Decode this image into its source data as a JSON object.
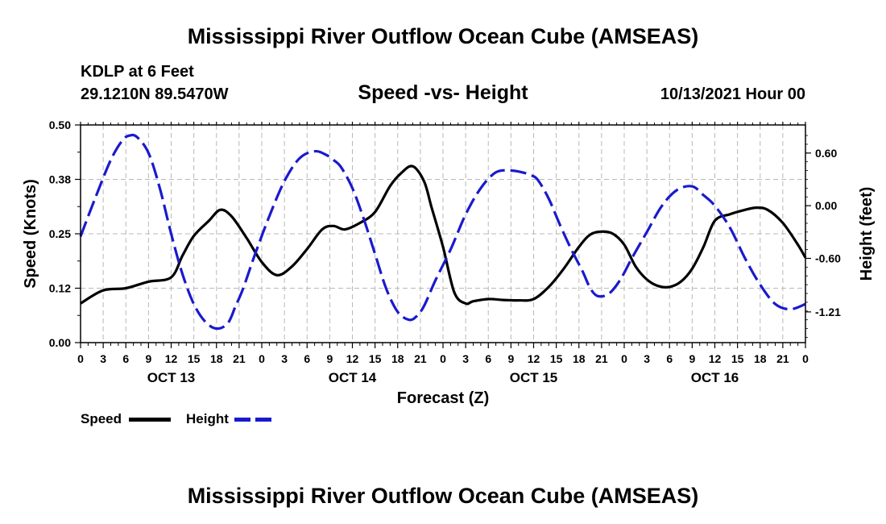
{
  "page": {
    "title": "Mississippi River Outflow Ocean Cube (AMSEAS)",
    "title_bottom": "Mississippi River Outflow Ocean Cube (AMSEAS)",
    "station": "KDLP at 6 Feet",
    "coords": "29.1210N  89.5470W",
    "subtitle": "Speed -vs- Height",
    "datetime": "10/13/2021 Hour 00"
  },
  "chart_data": {
    "type": "line",
    "title": "Speed -vs- Height",
    "xlabel": "Forecast (Z)",
    "ylabel": "Speed (Knots)",
    "y2label": "Height (feet)",
    "x_hours": [
      0,
      96
    ],
    "x_tick_labels": [
      "0",
      "3",
      "6",
      "9",
      "12",
      "15",
      "18",
      "21",
      "0",
      "3",
      "6",
      "9",
      "12",
      "15",
      "18",
      "21",
      "0",
      "3",
      "6",
      "9",
      "12",
      "15",
      "18",
      "21",
      "0",
      "3",
      "6",
      "9",
      "12",
      "15",
      "18",
      "21",
      "0"
    ],
    "day_labels": [
      "OCT 13",
      "OCT 14",
      "OCT 15",
      "OCT 16"
    ],
    "ylim": [
      0,
      0.5
    ],
    "y_ticks": [
      "0.00",
      "0.12",
      "0.25",
      "0.38",
      "0.50"
    ],
    "y2lim": [
      -1.56,
      0.92
    ],
    "y2_ticks": [
      "0.60",
      "0.00",
      "-0.60",
      "-1.21"
    ],
    "y2_tick_values": [
      0.6,
      0.0,
      -0.6,
      -1.21
    ],
    "grid": true,
    "legend_position": "bottom-left",
    "series": [
      {
        "name": "Speed",
        "axis": "left",
        "color": "#000000",
        "style": "solid",
        "x": [
          0,
          3,
          6,
          9,
          12,
          13.5,
          15,
          17,
          18.5,
          20,
          22,
          24,
          26,
          28,
          30,
          32,
          33.5,
          35,
          37,
          39,
          41,
          42.5,
          44,
          45.5,
          46.5,
          48,
          49.5,
          51,
          52,
          54,
          56,
          58,
          60,
          62,
          64,
          66,
          67.5,
          69,
          70.5,
          72,
          73.5,
          75,
          76.5,
          78,
          79.5,
          81,
          82.5,
          84,
          86,
          88,
          89.5,
          91,
          93,
          95,
          96
        ],
        "values": [
          0.09,
          0.12,
          0.125,
          0.14,
          0.15,
          0.2,
          0.245,
          0.28,
          0.305,
          0.29,
          0.24,
          0.185,
          0.155,
          0.175,
          0.215,
          0.26,
          0.268,
          0.26,
          0.275,
          0.3,
          0.36,
          0.39,
          0.405,
          0.37,
          0.31,
          0.22,
          0.115,
          0.09,
          0.095,
          0.1,
          0.098,
          0.097,
          0.1,
          0.128,
          0.17,
          0.22,
          0.248,
          0.255,
          0.25,
          0.225,
          0.175,
          0.145,
          0.13,
          0.128,
          0.14,
          0.17,
          0.22,
          0.28,
          0.295,
          0.305,
          0.31,
          0.305,
          0.275,
          0.225,
          0.195
        ]
      },
      {
        "name": "Height",
        "axis": "right",
        "color": "#1a1acd",
        "style": "dashed",
        "x": [
          0,
          2,
          4,
          5.5,
          6.5,
          7.5,
          9,
          10.5,
          12,
          13.5,
          15,
          16.5,
          18,
          19.5,
          20.5,
          21.5,
          23,
          25,
          27,
          29,
          31,
          32.5,
          33.5,
          34.5,
          36,
          37.5,
          39,
          40.5,
          42,
          43.5,
          44.5,
          45.5,
          47,
          49,
          51,
          53,
          55,
          57,
          58.5,
          59.5,
          60.5,
          62,
          63.5,
          65,
          66.5,
          67.5,
          68.5,
          70,
          71.5,
          73,
          75,
          77,
          79,
          81,
          82.5,
          84,
          86,
          88,
          90,
          92,
          94,
          96
        ],
        "values": [
          -0.35,
          0.1,
          0.52,
          0.74,
          0.8,
          0.78,
          0.6,
          0.2,
          -0.32,
          -0.78,
          -1.12,
          -1.32,
          -1.4,
          -1.34,
          -1.15,
          -0.95,
          -0.58,
          -0.12,
          0.28,
          0.54,
          0.62,
          0.58,
          0.52,
          0.44,
          0.2,
          -0.15,
          -0.55,
          -0.95,
          -1.21,
          -1.3,
          -1.26,
          -1.14,
          -0.85,
          -0.5,
          -0.1,
          0.2,
          0.38,
          0.4,
          0.38,
          0.35,
          0.3,
          0.08,
          -0.22,
          -0.5,
          -0.75,
          -0.94,
          -1.03,
          -1.0,
          -0.84,
          -0.6,
          -0.3,
          0.0,
          0.18,
          0.22,
          0.12,
          0.0,
          -0.25,
          -0.6,
          -0.9,
          -1.12,
          -1.18,
          -1.12
        ]
      }
    ]
  }
}
